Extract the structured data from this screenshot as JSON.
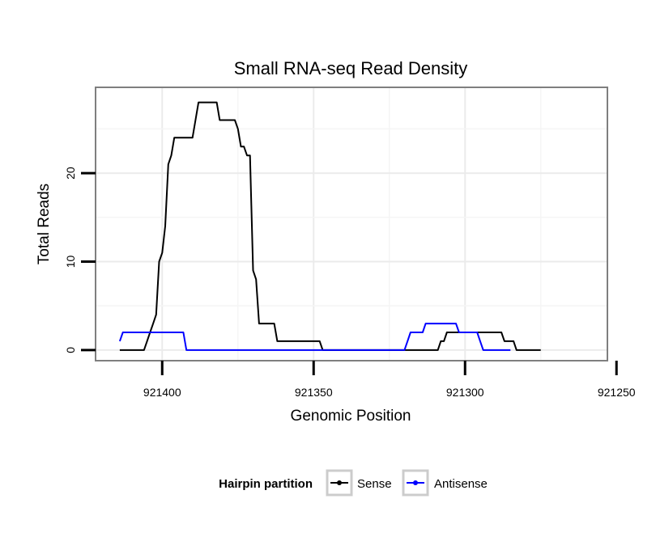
{
  "chart_data": {
    "type": "line",
    "title": "Small RNA-seq Read Density",
    "xlabel": "Genomic Position",
    "ylabel": "Total Reads",
    "xlim": [
      921422,
      921253
    ],
    "ylim": [
      -1.2,
      29.7
    ],
    "x_reversed": true,
    "x_ticks": [
      921400,
      921350,
      921300,
      921250
    ],
    "x_tick_labels": [
      "921400",
      "921350",
      "921300",
      "921250"
    ],
    "y_ticks": [
      0,
      10,
      20
    ],
    "y_tick_labels": [
      "0",
      "10",
      "20"
    ],
    "grid": true,
    "legend": {
      "title": "Hairpin partition",
      "position": "bottom"
    },
    "series": [
      {
        "name": "Sense",
        "color": "#000000",
        "x": [
          921414,
          921406,
          921405,
          921404,
          921403,
          921402,
          921401,
          921400,
          921399,
          921398,
          921397,
          921396,
          921395,
          921390,
          921389,
          921388,
          921382,
          921381,
          921376,
          921375,
          921374,
          921373,
          921372,
          921371,
          921370,
          921369,
          921368,
          921367,
          921363,
          921362,
          921359,
          921358,
          921348,
          921347,
          921310,
          921309,
          921308,
          921307,
          921306,
          921305,
          921304,
          921290,
          921289,
          921288,
          921287,
          921285,
          921284,
          921283,
          921280,
          921275
        ],
        "y": [
          0,
          0,
          1,
          2,
          3,
          4,
          10,
          11,
          14,
          21,
          22,
          24,
          24,
          24,
          26,
          28,
          28,
          26,
          26,
          25,
          23,
          23,
          22,
          22,
          9,
          8,
          3,
          3,
          3,
          1,
          1,
          1,
          1,
          0,
          0,
          0,
          1,
          1,
          2,
          2,
          2,
          2,
          2,
          2,
          1,
          1,
          1,
          0,
          0,
          0
        ]
      },
      {
        "name": "Antisense",
        "color": "#0000ff",
        "x": [
          921414,
          921413,
          921402,
          921401,
          921400,
          921399,
          921398,
          921397,
          921394,
          921393,
          921392,
          921391,
          921320,
          921319,
          921318,
          921315,
          921314,
          921313,
          921303,
          921302,
          921301,
          921296,
          921295,
          921294,
          921290,
          921285
        ],
        "y": [
          1,
          2,
          2,
          2,
          2,
          2,
          2,
          2,
          2,
          2,
          0,
          0,
          0,
          1,
          2,
          2,
          2,
          3,
          3,
          2,
          2,
          2,
          1,
          0,
          0,
          0
        ]
      }
    ]
  }
}
